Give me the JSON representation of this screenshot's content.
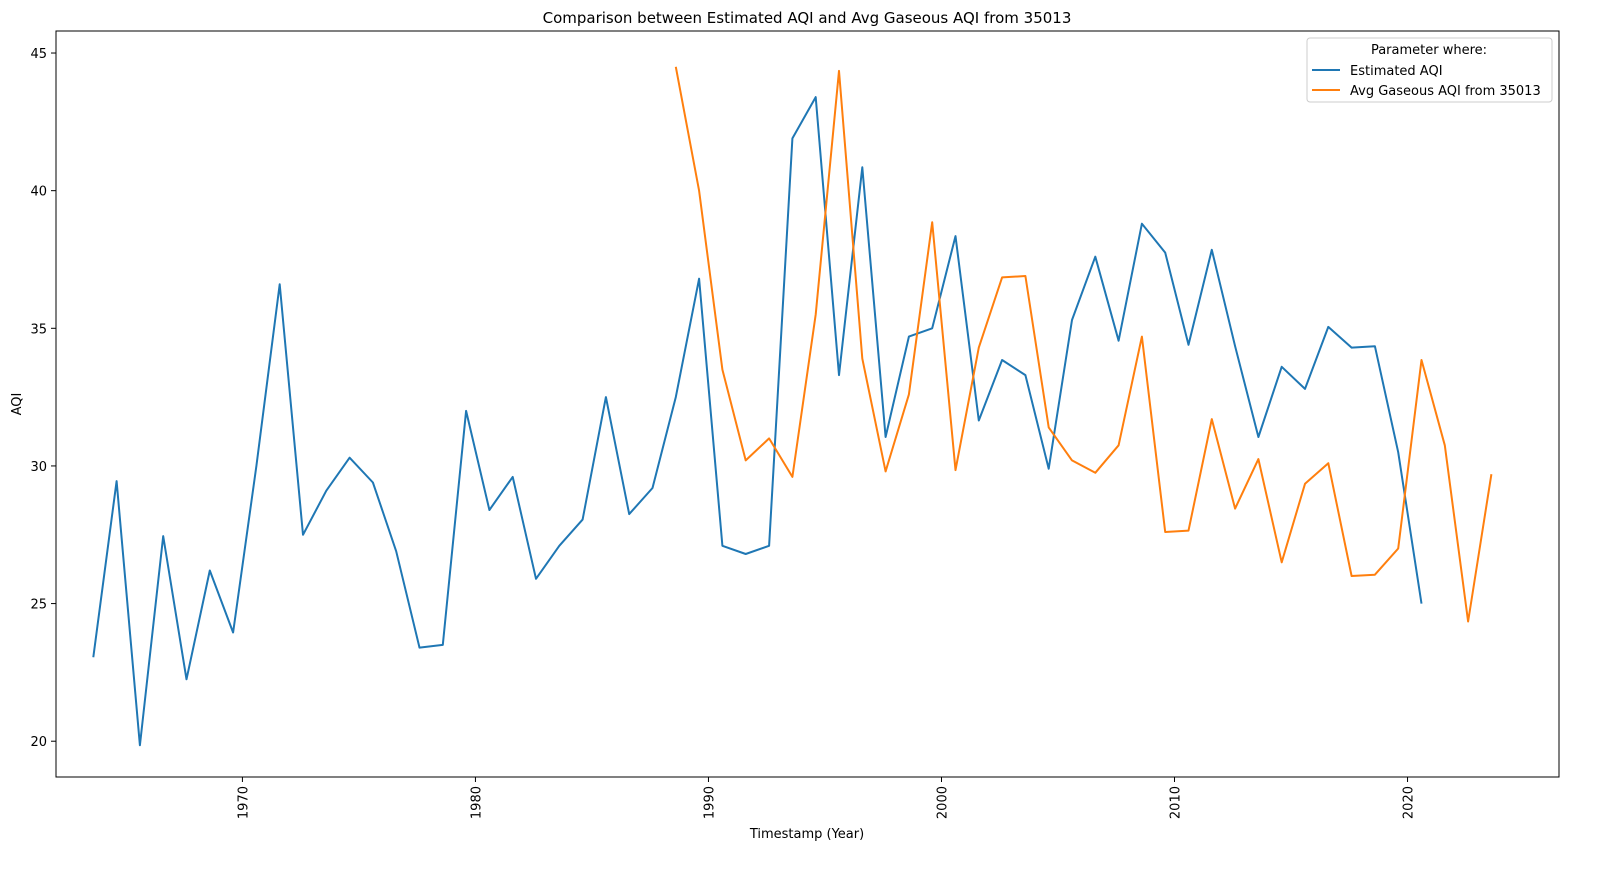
{
  "chart_data": {
    "type": "line",
    "title": "Comparison between Estimated AQI and Avg Gaseous AQI from 35013",
    "xlabel": "Timestamp (Year)",
    "ylabel": "AQI",
    "xlim": [
      1962.0,
      2026.5
    ],
    "ylim": [
      18.7,
      45.8
    ],
    "xticks": [
      1970,
      1980,
      1990,
      2000,
      2010,
      2020
    ],
    "yticks": [
      20,
      25,
      30,
      35,
      40,
      45
    ],
    "grid": false,
    "legend": {
      "title": "Parameter where:",
      "position": "top-right"
    },
    "series": [
      {
        "name": "Estimated AQI",
        "color": "#1f77b4",
        "x": [
          1963.6,
          1964.6,
          1965.6,
          1966.6,
          1967.6,
          1968.6,
          1969.6,
          1970.6,
          1971.6,
          1972.6,
          1973.6,
          1974.6,
          1975.6,
          1976.6,
          1977.6,
          1978.6,
          1979.6,
          1980.6,
          1981.6,
          1982.6,
          1983.6,
          1984.6,
          1985.6,
          1986.6,
          1987.6,
          1988.6,
          1989.6,
          1990.6,
          1991.6,
          1992.6,
          1993.6,
          1994.6,
          1995.6,
          1996.6,
          1997.6,
          1998.6,
          1999.6,
          2000.6,
          2001.6,
          2002.6,
          2003.6,
          2004.6,
          2005.6,
          2006.6,
          2007.6,
          2008.6,
          2009.6,
          2010.6,
          2011.6,
          2012.6,
          2013.6,
          2014.6,
          2015.6,
          2016.6,
          2017.6,
          2018.6,
          2019.6,
          2020.6
        ],
        "y": [
          23.05,
          29.45,
          19.85,
          27.45,
          22.25,
          26.2,
          23.95,
          30.0,
          36.6,
          27.5,
          29.1,
          30.3,
          29.4,
          26.9,
          23.4,
          23.5,
          32.0,
          28.4,
          29.6,
          25.9,
          27.1,
          28.05,
          32.5,
          28.25,
          29.2,
          32.5,
          36.8,
          27.1,
          26.8,
          27.1,
          41.9,
          43.4,
          33.3,
          40.85,
          31.05,
          34.7,
          35.0,
          38.35,
          31.65,
          33.85,
          33.3,
          29.9,
          35.3,
          37.6,
          34.55,
          38.8,
          37.75,
          34.4,
          37.85,
          34.35,
          31.05,
          33.6,
          32.8,
          35.05,
          34.3,
          34.35,
          30.5,
          25.0
        ]
      },
      {
        "name": "Avg Gaseous AQI from 35013",
        "color": "#ff7f0e",
        "x": [
          1988.6,
          1989.6,
          1990.6,
          1991.6,
          1992.6,
          1993.6,
          1994.6,
          1995.6,
          1996.6,
          1997.6,
          1998.6,
          1999.6,
          2000.6,
          2001.6,
          2002.6,
          2003.6,
          2004.6,
          2005.6,
          2006.6,
          2007.6,
          2008.6,
          2009.6,
          2010.6,
          2011.6,
          2012.6,
          2013.6,
          2014.6,
          2015.6,
          2016.6,
          2017.6,
          2018.6,
          2019.6,
          2020.6,
          2021.6,
          2022.6,
          2023.6
        ],
        "y": [
          44.5,
          40.0,
          33.5,
          30.2,
          31.0,
          29.6,
          35.5,
          44.35,
          33.9,
          29.8,
          32.6,
          38.85,
          29.85,
          34.3,
          36.85,
          36.9,
          31.4,
          30.2,
          29.75,
          30.75,
          34.7,
          27.6,
          27.65,
          31.7,
          28.45,
          30.25,
          26.5,
          29.35,
          30.1,
          26.0,
          26.05,
          27.0,
          33.85,
          30.75,
          24.35,
          29.7
        ]
      }
    ]
  }
}
